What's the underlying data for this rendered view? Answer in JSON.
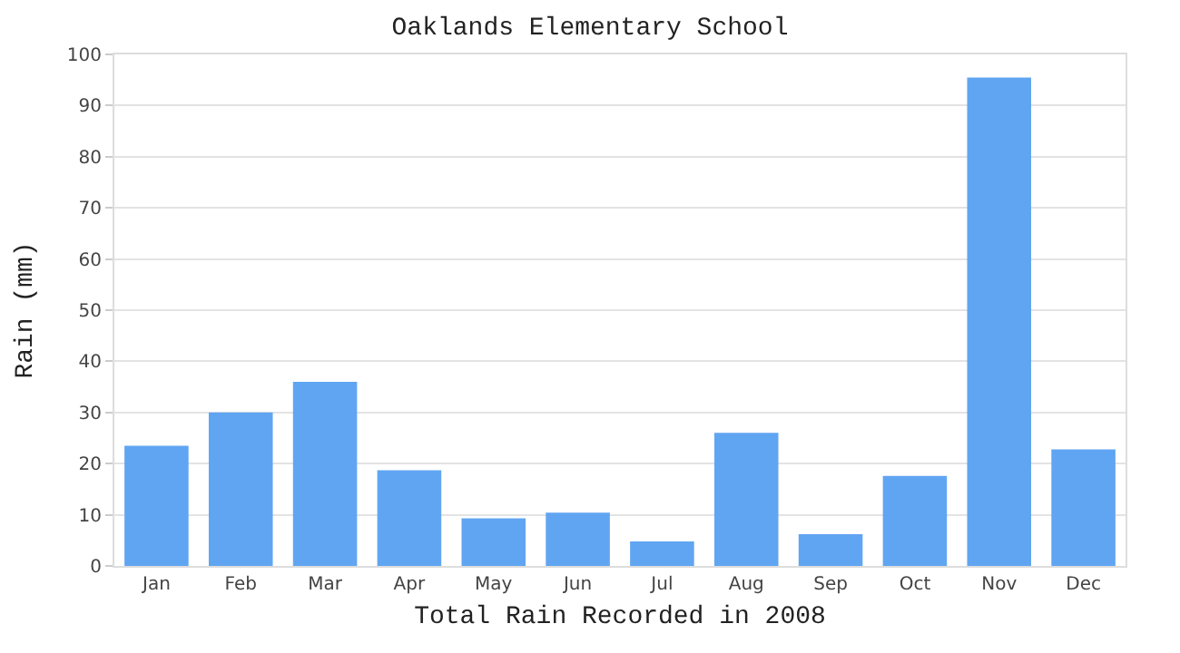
{
  "chart_data": {
    "type": "bar",
    "title": "Oaklands Elementary School",
    "xlabel": "Total Rain Recorded in 2008",
    "ylabel": "Rain (mm)",
    "categories": [
      "Jan",
      "Feb",
      "Mar",
      "Apr",
      "May",
      "Jun",
      "Jul",
      "Aug",
      "Sep",
      "Oct",
      "Nov",
      "Dec"
    ],
    "values": [
      23.5,
      30,
      36,
      18.7,
      9.3,
      10.4,
      4.8,
      26,
      6.2,
      17.6,
      95.5,
      22.8
    ],
    "color": "#60a5f2",
    "ylim": [
      0,
      100
    ],
    "yticks": [
      0,
      10,
      20,
      30,
      40,
      50,
      60,
      70,
      80,
      90,
      100
    ],
    "grid": "y"
  }
}
